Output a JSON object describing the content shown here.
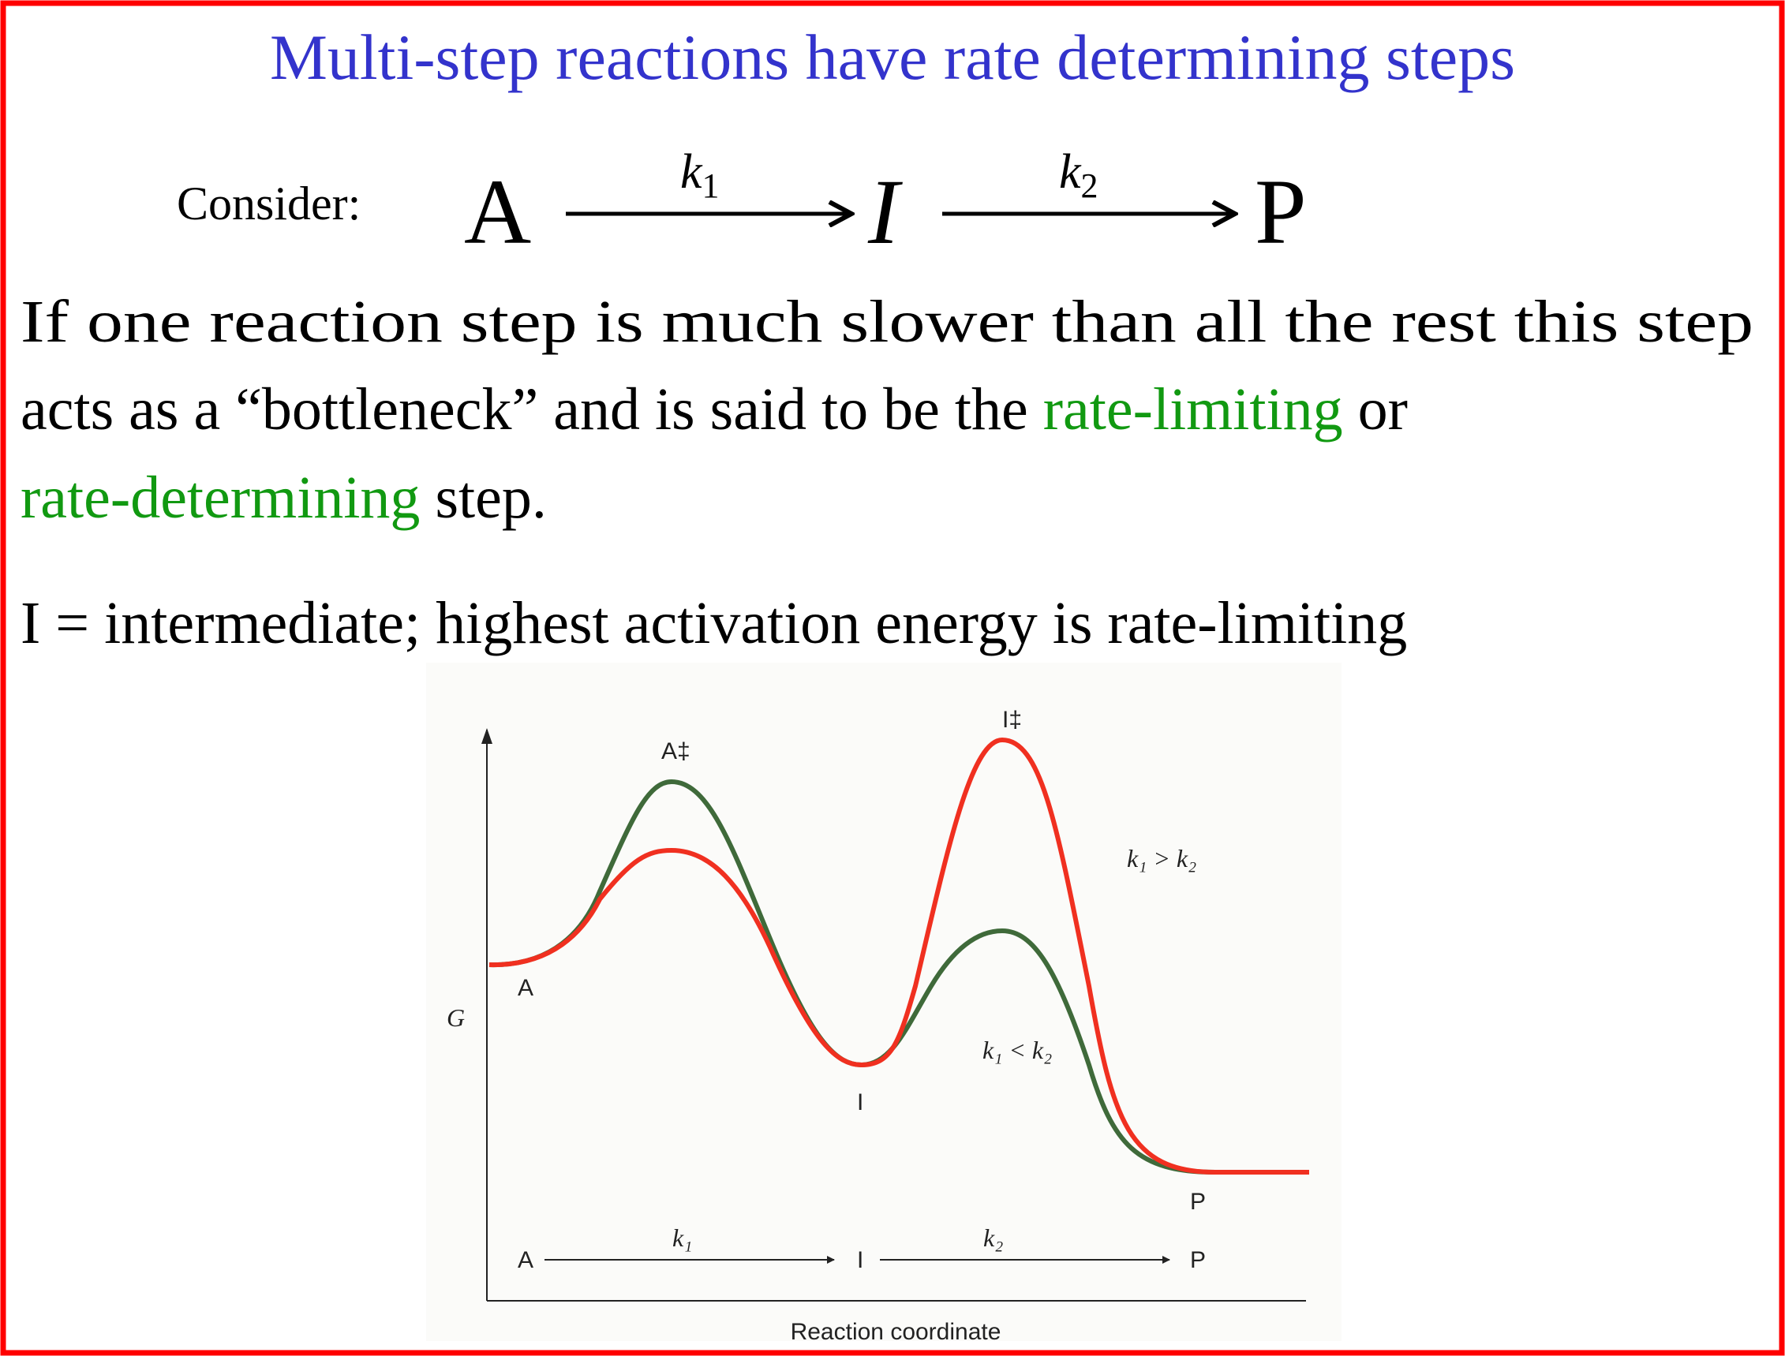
{
  "slide": {
    "title": "Multi-step reactions have rate determining steps",
    "colors": {
      "title": "#3333cc",
      "highlight": "#119911",
      "border": "#ff0000",
      "curve_k1_gt_k2": "#f03020",
      "curve_k1_lt_k2": "#3f6a3a"
    },
    "equation": {
      "prefix": "Consider:",
      "reactant": "A",
      "k1": "k",
      "k1_sub": "1",
      "intermediate": "I",
      "k2": "k",
      "k2_sub": "2",
      "product": "P"
    },
    "paragraph": {
      "line1": "If one reaction step is much slower than all the rest this step",
      "line2_a": "acts as a “bottleneck” and is said to be the ",
      "line2_b": "rate-limiting",
      "line2_c": " or",
      "line3_a": "rate-determining",
      "line3_b": " step."
    },
    "note": "I = intermediate; highest activation energy is rate-limiting"
  },
  "diagram": {
    "y_axis_label": "G",
    "x_axis_label": "Reaction coordinate",
    "labels": {
      "A": "A",
      "I": "I",
      "P": "P",
      "A_ts": "A‡",
      "I_ts": "I‡"
    },
    "curve_labels": {
      "k1_gt_k2": "k₁ > k₂",
      "k1_lt_k2": "k₁ < k₂"
    },
    "scheme": {
      "A": "A",
      "k1": "k₁",
      "I": "I",
      "k2": "k₂",
      "P": "P"
    }
  }
}
